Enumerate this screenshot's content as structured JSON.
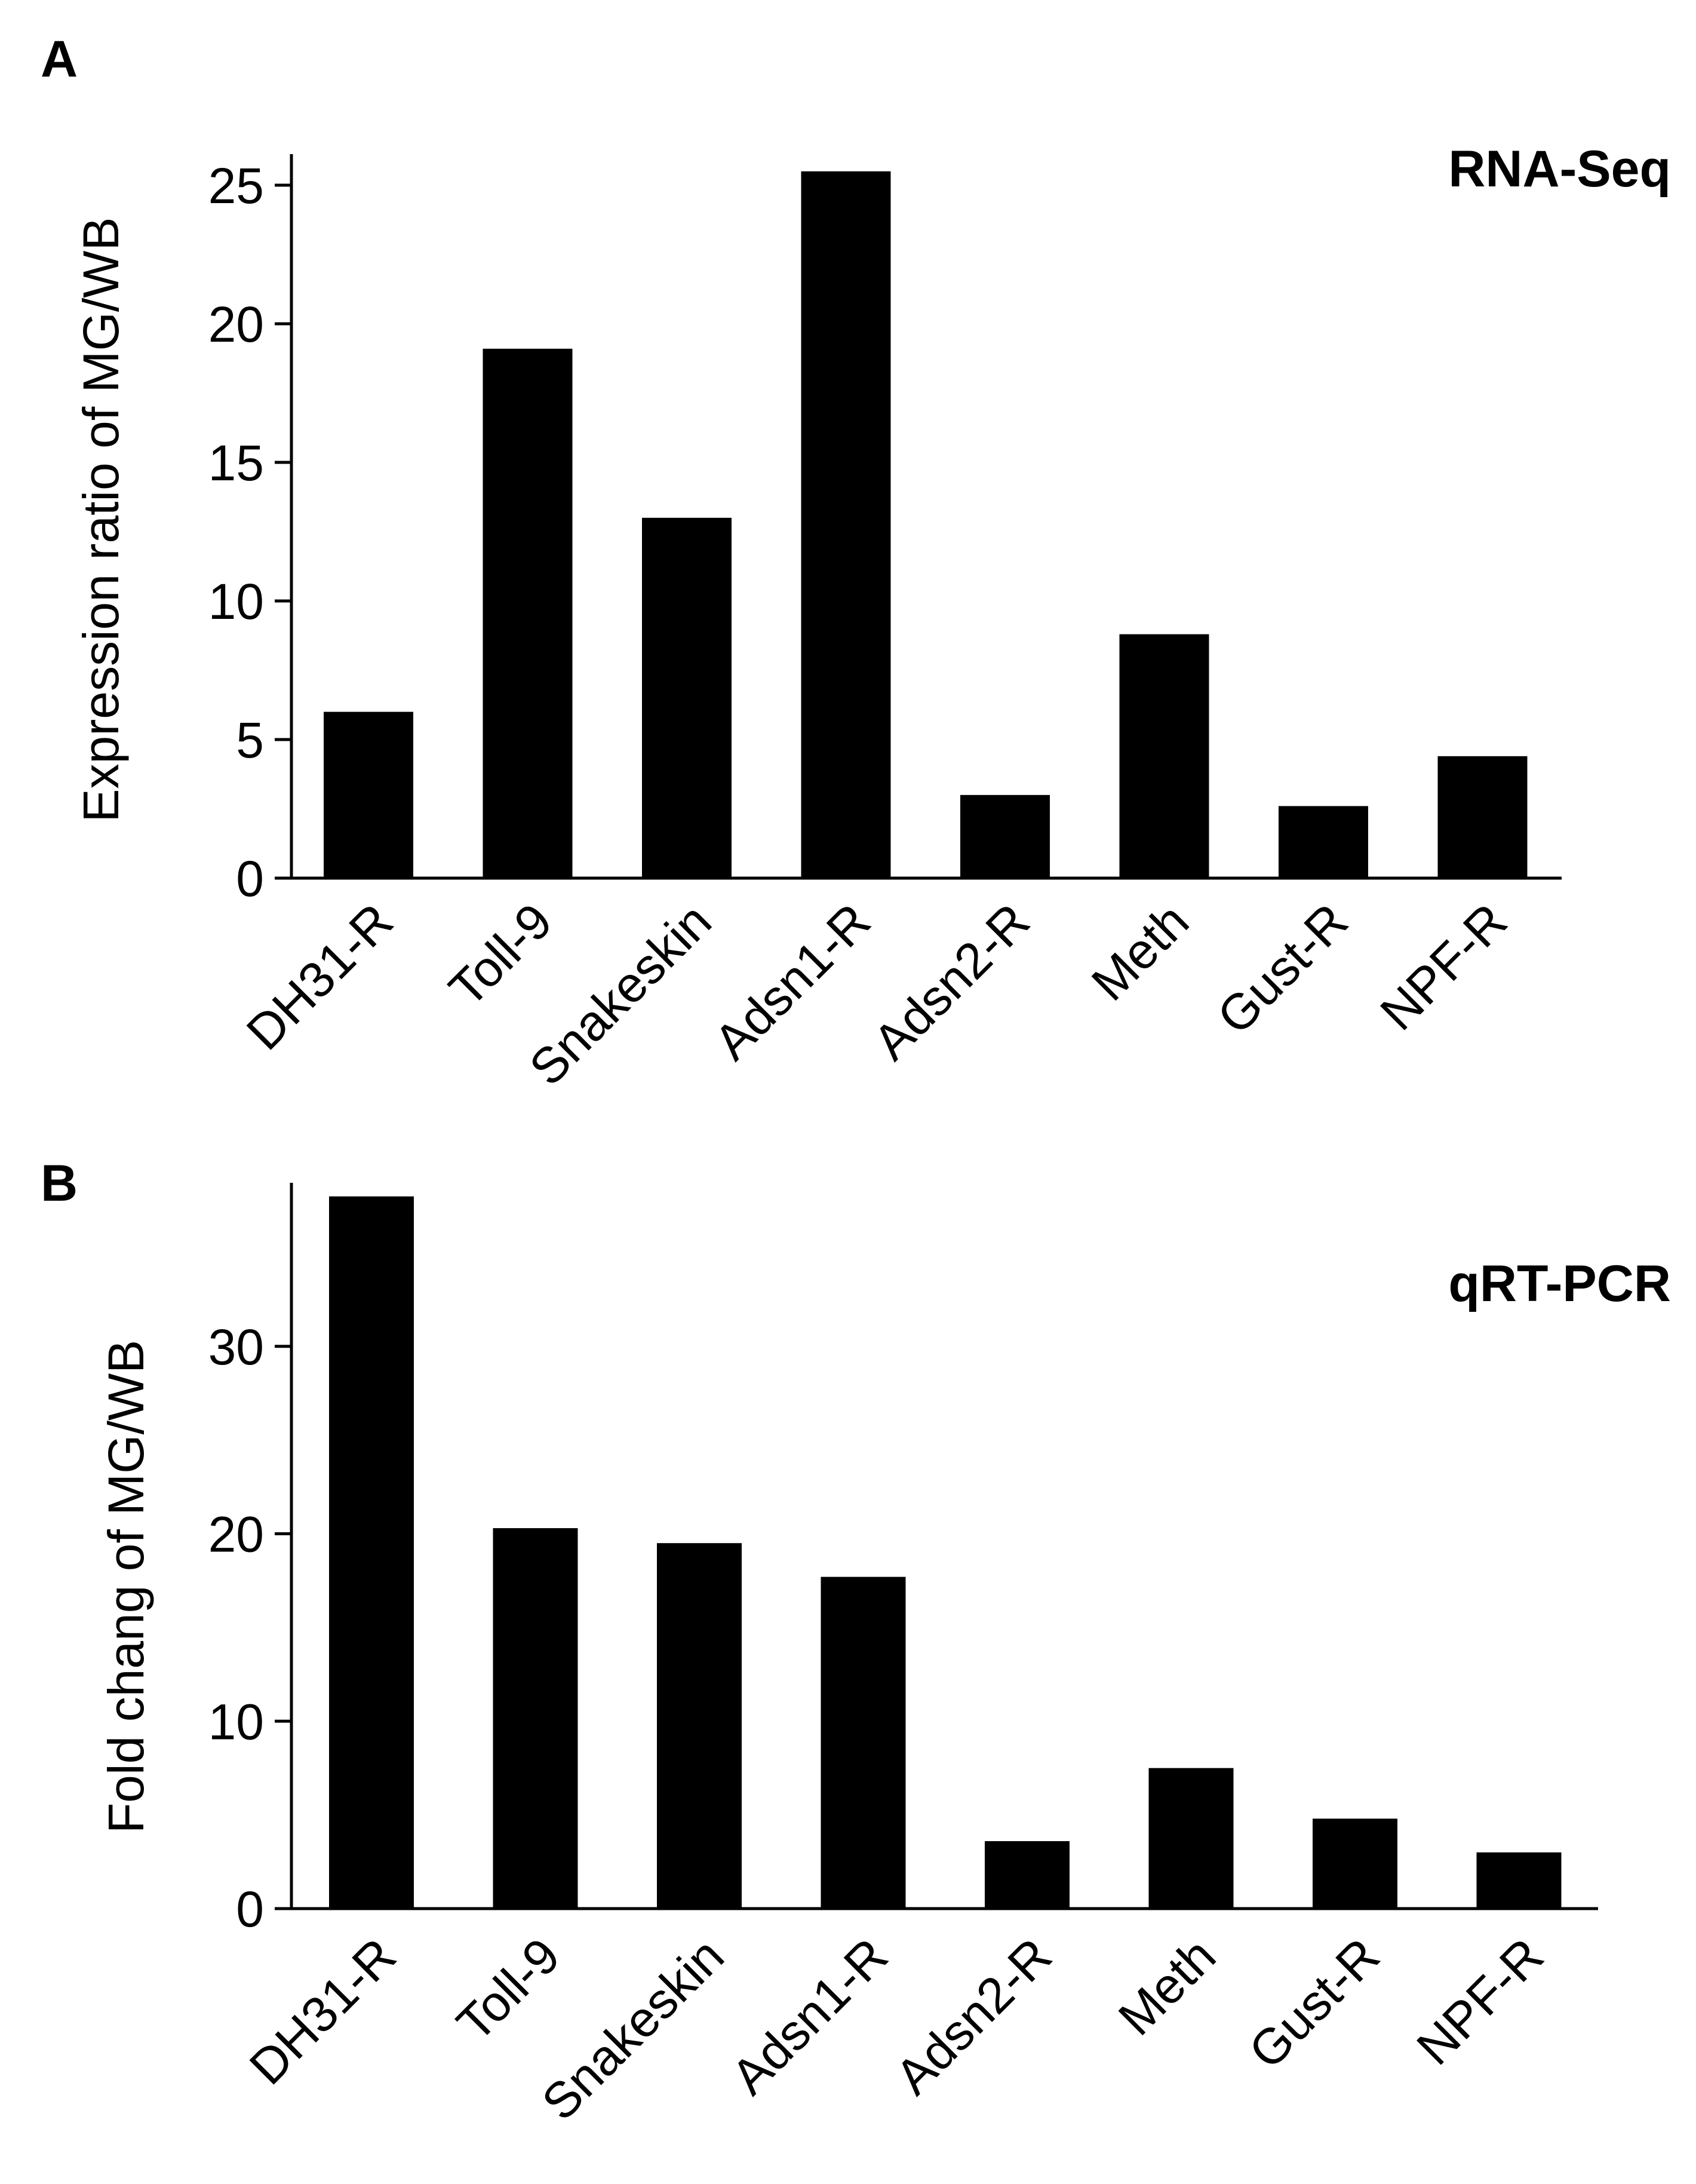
{
  "chart_data": [
    {
      "type": "bar",
      "panel": "A",
      "title": "RNA-Seq",
      "xlabel": "",
      "ylabel": "Expression ratio of MG/WB",
      "ylim": [
        0,
        26
      ],
      "yticks": [
        0,
        5,
        10,
        15,
        20,
        25
      ],
      "grid": false,
      "categories": [
        "DH31-R",
        "Toll-9",
        "Snakeskin",
        "Adsn1-R",
        "Adsn2-R",
        "Meth",
        "Gust-R",
        "NPF-R"
      ],
      "values": [
        6.0,
        19.1,
        13.0,
        25.5,
        3.0,
        8.8,
        2.6,
        4.4
      ]
    },
    {
      "type": "bar",
      "panel": "B",
      "title": "qRT-PCR",
      "xlabel": "",
      "ylabel": "Fold chang of MG/WB",
      "ylim": [
        0,
        38.5
      ],
      "yticks": [
        0,
        10,
        20,
        30
      ],
      "grid": false,
      "categories": [
        "DH31-R",
        "Toll-9",
        "Snakeskin",
        "Adsn1-R",
        "Adsn2-R",
        "Meth",
        "Gust-R",
        "NPF-R"
      ],
      "values": [
        38.0,
        20.3,
        19.5,
        17.7,
        3.6,
        7.5,
        4.8,
        3.0
      ]
    }
  ]
}
